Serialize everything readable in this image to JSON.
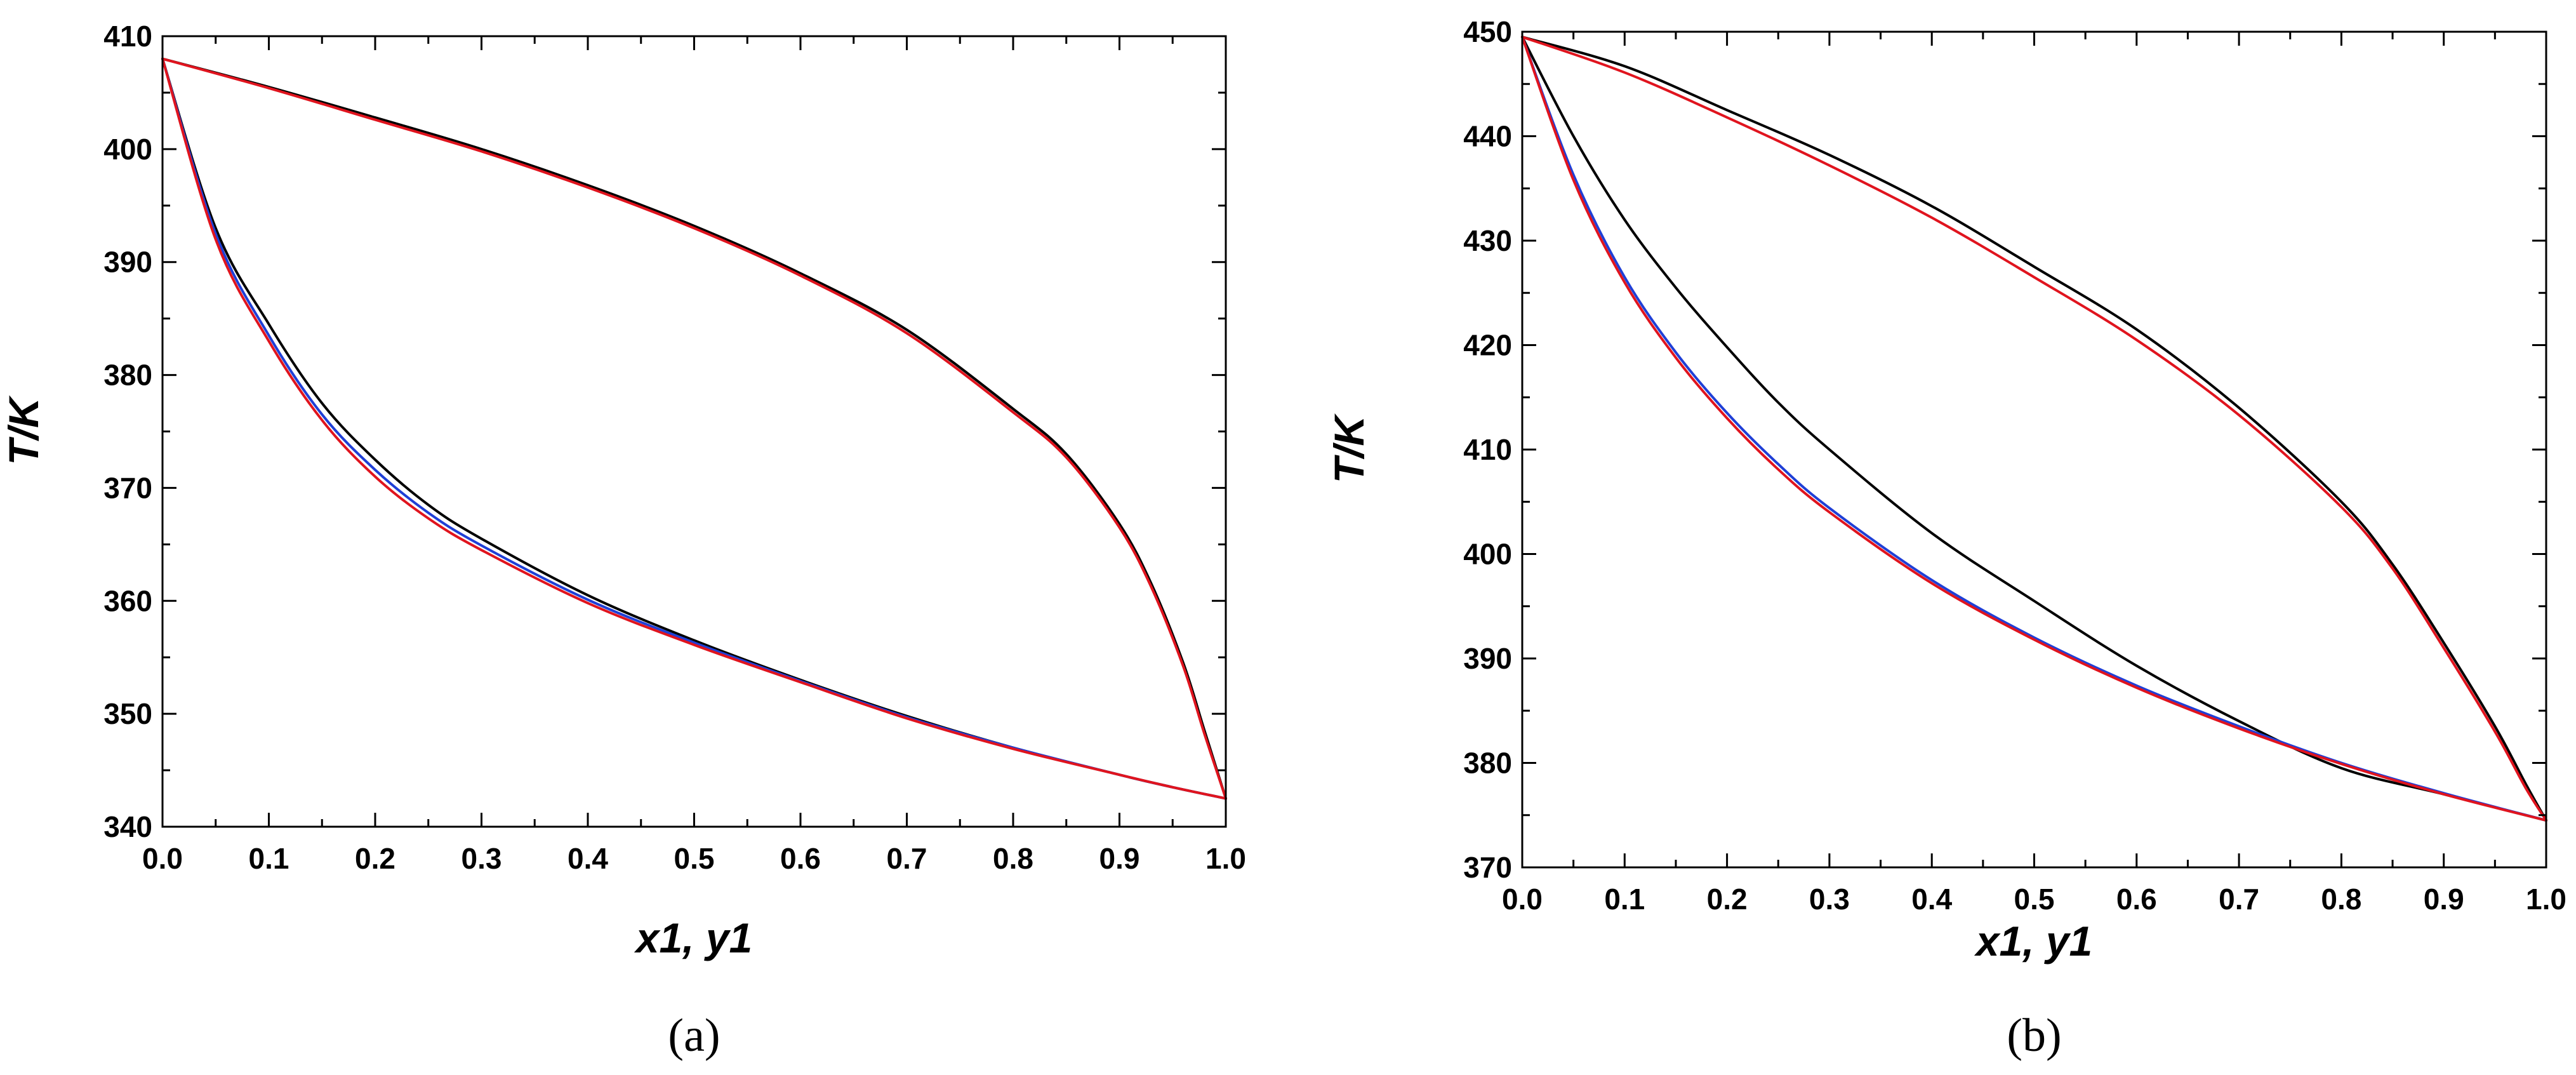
{
  "chart_data": [
    {
      "type": "line",
      "panel_label": "(a)",
      "xlabel": "x1, y1",
      "ylabel": "T/K",
      "xlim": [
        0.0,
        1.0
      ],
      "ylim": [
        340,
        410
      ],
      "x_ticks": [
        "0.0",
        "0.1",
        "0.2",
        "0.3",
        "0.4",
        "0.5",
        "0.6",
        "0.7",
        "0.8",
        "0.9",
        "1.0"
      ],
      "y_ticks": [
        "340",
        "350",
        "360",
        "370",
        "380",
        "390",
        "400",
        "410"
      ],
      "grid": false,
      "legend": "none",
      "series": [
        {
          "color": "#000000",
          "x": [
            0,
            0.05,
            0.1,
            0.15,
            0.2,
            0.25,
            0.3,
            0.4,
            0.5,
            0.6,
            0.7,
            0.8,
            0.9,
            0.95,
            1.0
          ],
          "y": [
            408,
            393,
            384.5,
            377.5,
            372.5,
            368.5,
            365.5,
            360.5,
            356.5,
            353,
            349.8,
            347,
            344.6,
            343.5,
            342.5
          ]
        },
        {
          "color": "#1f3fd6",
          "x": [
            0,
            0.05,
            0.1,
            0.15,
            0.2,
            0.25,
            0.3,
            0.4,
            0.5,
            0.6,
            0.7,
            0.8,
            0.9,
            0.95,
            1.0
          ],
          "y": [
            408,
            392.5,
            383.5,
            376.5,
            371.6,
            367.8,
            364.9,
            360.1,
            356.3,
            352.9,
            349.7,
            347,
            344.6,
            343.5,
            342.5
          ]
        },
        {
          "color": "#e0141e",
          "x": [
            0,
            0.05,
            0.1,
            0.15,
            0.2,
            0.25,
            0.3,
            0.4,
            0.5,
            0.6,
            0.7,
            0.8,
            0.9,
            0.95,
            1.0
          ],
          "y": [
            408,
            392,
            383,
            376,
            371,
            367.3,
            364.5,
            359.8,
            356.1,
            352.8,
            349.6,
            346.9,
            344.6,
            343.5,
            342.5
          ]
        },
        {
          "color": "#000000",
          "x": [
            0,
            0.1,
            0.2,
            0.3,
            0.4,
            0.5,
            0.6,
            0.7,
            0.8,
            0.85,
            0.9,
            0.93,
            0.96,
            0.98,
            1.0
          ],
          "y": [
            408,
            405.5,
            402.8,
            400,
            396.8,
            393.2,
            389,
            384,
            377,
            373,
            366.8,
            361.5,
            354.5,
            348.5,
            342.5
          ]
        },
        {
          "color": "#e0141e",
          "x": [
            0,
            0.1,
            0.2,
            0.3,
            0.4,
            0.5,
            0.6,
            0.7,
            0.8,
            0.85,
            0.9,
            0.93,
            0.96,
            0.98,
            1.0
          ],
          "y": [
            408,
            405.4,
            402.6,
            399.8,
            396.6,
            393,
            388.8,
            383.7,
            376.7,
            372.7,
            366.5,
            361.2,
            354.2,
            348.2,
            342.5
          ]
        }
      ]
    },
    {
      "type": "line",
      "panel_label": "(b)",
      "xlabel": "x1, y1",
      "ylabel": "T/K",
      "xlim": [
        0.0,
        1.0
      ],
      "ylim": [
        370,
        450
      ],
      "x_ticks": [
        "0.0",
        "0.1",
        "0.2",
        "0.3",
        "0.4",
        "0.5",
        "0.6",
        "0.7",
        "0.8",
        "0.9",
        "1.0"
      ],
      "y_ticks": [
        "370",
        "380",
        "390",
        "400",
        "410",
        "420",
        "430",
        "440",
        "450"
      ],
      "grid": false,
      "legend": "none",
      "series": [
        {
          "color": "#000000",
          "x": [
            0,
            0.05,
            0.1,
            0.15,
            0.2,
            0.25,
            0.3,
            0.4,
            0.5,
            0.6,
            0.7,
            0.8,
            0.9,
            1.0
          ],
          "y": [
            449.5,
            440,
            432,
            425.5,
            419.8,
            414.5,
            410,
            402,
            395.5,
            389.3,
            384,
            379.5,
            377,
            374.5
          ]
        },
        {
          "color": "#1f3fd6",
          "x": [
            0,
            0.05,
            0.1,
            0.15,
            0.2,
            0.25,
            0.3,
            0.4,
            0.5,
            0.6,
            0.7,
            0.8,
            0.9,
            1.0
          ],
          "y": [
            449.5,
            436.3,
            426.5,
            419.3,
            413.5,
            408.6,
            404.4,
            397.5,
            392,
            387.4,
            383.5,
            380,
            377.1,
            374.5
          ]
        },
        {
          "color": "#e0141e",
          "x": [
            0,
            0.05,
            0.1,
            0.15,
            0.2,
            0.25,
            0.3,
            0.4,
            0.5,
            0.6,
            0.7,
            0.8,
            0.9,
            1.0
          ],
          "y": [
            449.5,
            435.8,
            426,
            418.8,
            413,
            408.1,
            404,
            397.2,
            391.8,
            387.2,
            383.3,
            379.9,
            377,
            374.5
          ]
        },
        {
          "color": "#000000",
          "x": [
            0,
            0.1,
            0.2,
            0.3,
            0.4,
            0.5,
            0.6,
            0.7,
            0.8,
            0.85,
            0.9,
            0.95,
            0.98,
            1.0
          ],
          "y": [
            449.5,
            446.7,
            442.5,
            438.2,
            433.3,
            427.5,
            421.5,
            414,
            405,
            399,
            391.5,
            383.5,
            378,
            374.5
          ]
        },
        {
          "color": "#e0141e",
          "x": [
            0,
            0.1,
            0.2,
            0.3,
            0.4,
            0.5,
            0.6,
            0.7,
            0.8,
            0.85,
            0.9,
            0.95,
            0.98,
            1.0
          ],
          "y": [
            449.5,
            446.1,
            441.8,
            437.2,
            432.2,
            426.5,
            420.5,
            413.3,
            404.5,
            398.6,
            391,
            383,
            377.6,
            374.5
          ]
        }
      ]
    }
  ]
}
